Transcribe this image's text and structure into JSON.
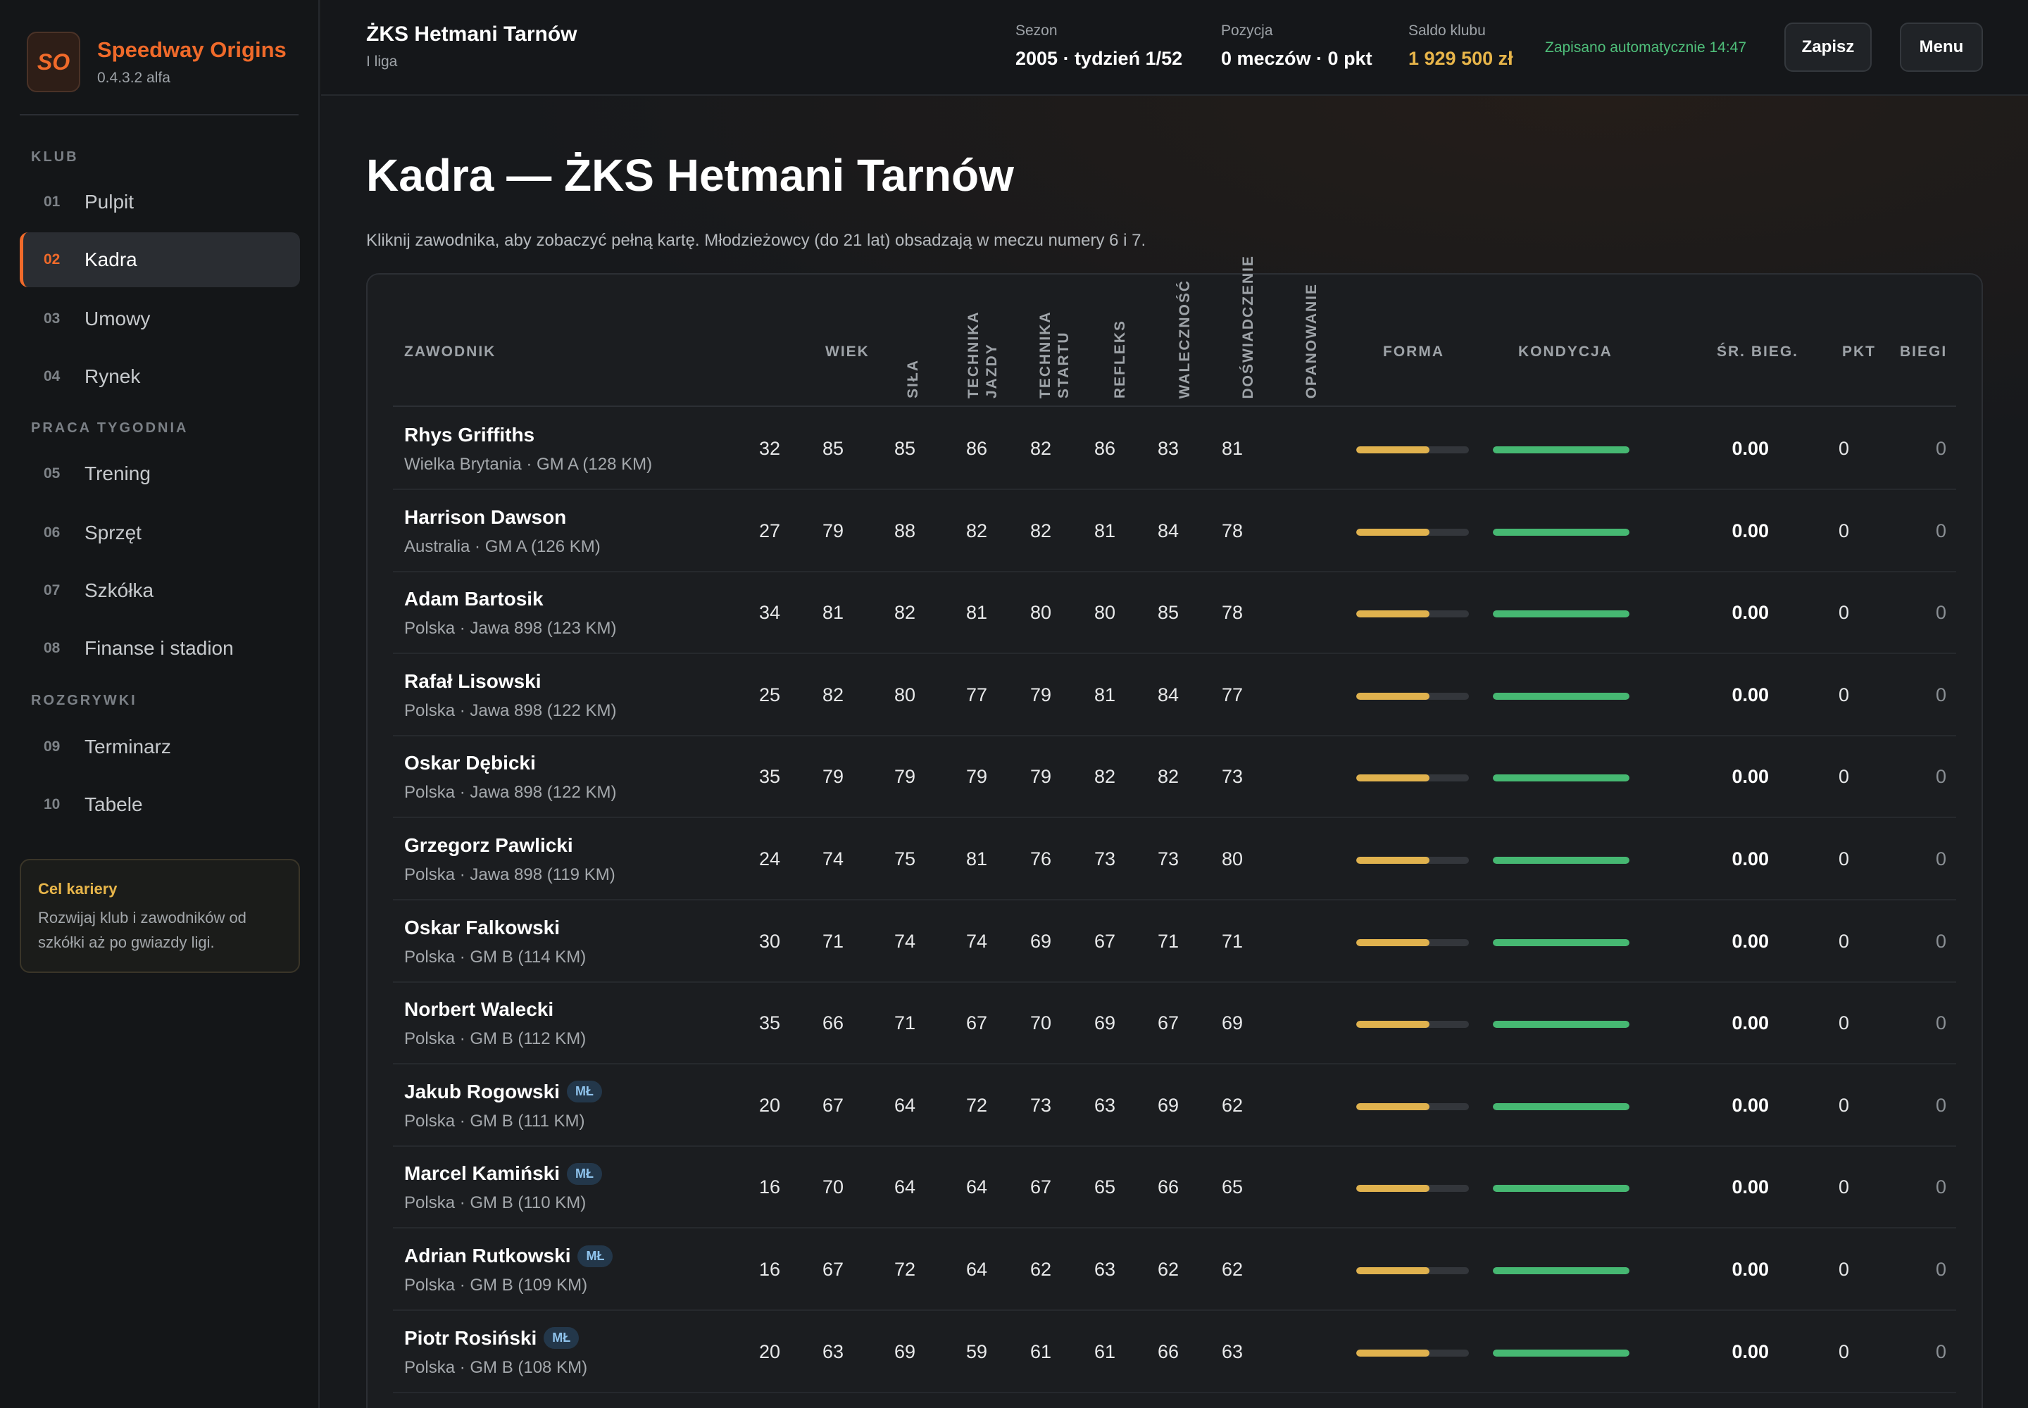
{
  "brand": {
    "logo": "SO",
    "name": "Speedway Origins",
    "version": "0.4.3.2 alfa"
  },
  "nav": {
    "section_club": "KLUB",
    "section_week": "PRACA TYGODNIA",
    "section_games": "ROZGRYWKI",
    "items": [
      {
        "num": "01",
        "label": "Pulpit",
        "active": false
      },
      {
        "num": "02",
        "label": "Kadra",
        "active": true
      },
      {
        "num": "03",
        "label": "Umowy",
        "active": false
      },
      {
        "num": "04",
        "label": "Rynek",
        "active": false
      },
      {
        "num": "05",
        "label": "Trening",
        "active": false
      },
      {
        "num": "06",
        "label": "Sprzęt",
        "active": false
      },
      {
        "num": "07",
        "label": "Szkółka",
        "active": false
      },
      {
        "num": "08",
        "label": "Finanse i stadion",
        "active": false
      },
      {
        "num": "09",
        "label": "Terminarz",
        "active": false
      },
      {
        "num": "10",
        "label": "Tabele",
        "active": false
      }
    ]
  },
  "career": {
    "title": "Cel kariery",
    "text": "Rozwijaj klub i zawodników od szkółki aż po gwiazdy ligi."
  },
  "topbar": {
    "club": "ŻKS Hetmani Tarnów",
    "league": "I liga",
    "season_label": "Sezon",
    "season_value": "2005 · tydzień 1/52",
    "position_label": "Pozycja",
    "position_value": "0 meczów · 0 pkt",
    "balance_label": "Saldo klubu",
    "balance_value": "1 929 500 zł",
    "autosave": "Zapisano automatycznie 14:47",
    "save_label": "Zapisz",
    "menu_label": "Menu"
  },
  "page": {
    "title": "Kadra — ŻKS Hetmani Tarnów",
    "subtitle": "Kliknij zawodnika, aby zobaczyć pełną kartę. Młodzieżowcy (do 21 lat) obsadzają w meczu numery 6 i 7."
  },
  "table": {
    "headers": {
      "player": "ZAWODNIK",
      "age": "WIEK",
      "strength": "SIŁA",
      "riding": "TECHNIKA JAZDY",
      "start": "TECHNIKA STARTU",
      "reflex": "REFLEKS",
      "fight": "WALECZNOŚĆ",
      "experience": "DOŚWIADCZENIE",
      "composure": "OPANOWANIE",
      "form": "FORMA",
      "condition": "KONDYCJA",
      "avg": "ŚR. BIEG.",
      "pts": "PKT",
      "heats": "BIEGI"
    },
    "badge_label": "MŁ",
    "rows": [
      {
        "name": "Rhys Griffiths",
        "junior": false,
        "meta": "Wielka Brytania · GM A (128 KM)",
        "age": "32",
        "strength": "85",
        "riding": "85",
        "start": "86",
        "reflex": "82",
        "fight": "86",
        "experience": "83",
        "composure": "81",
        "form": 0.65,
        "condition": 1.0,
        "avg": "0.00",
        "pts": "0",
        "heats": "0"
      },
      {
        "name": "Harrison Dawson",
        "junior": false,
        "meta": "Australia · GM A (126 KM)",
        "age": "27",
        "strength": "79",
        "riding": "88",
        "start": "82",
        "reflex": "82",
        "fight": "81",
        "experience": "84",
        "composure": "78",
        "form": 0.65,
        "condition": 1.0,
        "avg": "0.00",
        "pts": "0",
        "heats": "0"
      },
      {
        "name": "Adam Bartosik",
        "junior": false,
        "meta": "Polska · Jawa 898 (123 KM)",
        "age": "34",
        "strength": "81",
        "riding": "82",
        "start": "81",
        "reflex": "80",
        "fight": "80",
        "experience": "85",
        "composure": "78",
        "form": 0.65,
        "condition": 1.0,
        "avg": "0.00",
        "pts": "0",
        "heats": "0"
      },
      {
        "name": "Rafał Lisowski",
        "junior": false,
        "meta": "Polska · Jawa 898 (122 KM)",
        "age": "25",
        "strength": "82",
        "riding": "80",
        "start": "77",
        "reflex": "79",
        "fight": "81",
        "experience": "84",
        "composure": "77",
        "form": 0.65,
        "condition": 1.0,
        "avg": "0.00",
        "pts": "0",
        "heats": "0"
      },
      {
        "name": "Oskar Dębicki",
        "junior": false,
        "meta": "Polska · Jawa 898 (122 KM)",
        "age": "35",
        "strength": "79",
        "riding": "79",
        "start": "79",
        "reflex": "79",
        "fight": "82",
        "experience": "82",
        "composure": "73",
        "form": 0.65,
        "condition": 1.0,
        "avg": "0.00",
        "pts": "0",
        "heats": "0"
      },
      {
        "name": "Grzegorz Pawlicki",
        "junior": false,
        "meta": "Polska · Jawa 898 (119 KM)",
        "age": "24",
        "strength": "74",
        "riding": "75",
        "start": "81",
        "reflex": "76",
        "fight": "73",
        "experience": "73",
        "composure": "80",
        "form": 0.65,
        "condition": 1.0,
        "avg": "0.00",
        "pts": "0",
        "heats": "0"
      },
      {
        "name": "Oskar Falkowski",
        "junior": false,
        "meta": "Polska · GM B (114 KM)",
        "age": "30",
        "strength": "71",
        "riding": "74",
        "start": "74",
        "reflex": "69",
        "fight": "67",
        "experience": "71",
        "composure": "71",
        "form": 0.65,
        "condition": 1.0,
        "avg": "0.00",
        "pts": "0",
        "heats": "0"
      },
      {
        "name": "Norbert Walecki",
        "junior": false,
        "meta": "Polska · GM B (112 KM)",
        "age": "35",
        "strength": "66",
        "riding": "71",
        "start": "67",
        "reflex": "70",
        "fight": "69",
        "experience": "67",
        "composure": "69",
        "form": 0.65,
        "condition": 1.0,
        "avg": "0.00",
        "pts": "0",
        "heats": "0"
      },
      {
        "name": "Jakub Rogowski",
        "junior": true,
        "meta": "Polska · GM B (111 KM)",
        "age": "20",
        "strength": "67",
        "riding": "64",
        "start": "72",
        "reflex": "73",
        "fight": "63",
        "experience": "69",
        "composure": "62",
        "form": 0.65,
        "condition": 1.0,
        "avg": "0.00",
        "pts": "0",
        "heats": "0"
      },
      {
        "name": "Marcel Kamiński",
        "junior": true,
        "meta": "Polska · GM B (110 KM)",
        "age": "16",
        "strength": "70",
        "riding": "64",
        "start": "64",
        "reflex": "67",
        "fight": "65",
        "experience": "66",
        "composure": "65",
        "form": 0.65,
        "condition": 1.0,
        "avg": "0.00",
        "pts": "0",
        "heats": "0"
      },
      {
        "name": "Adrian Rutkowski",
        "junior": true,
        "meta": "Polska · GM B (109 KM)",
        "age": "16",
        "strength": "67",
        "riding": "72",
        "start": "64",
        "reflex": "62",
        "fight": "63",
        "experience": "62",
        "composure": "62",
        "form": 0.65,
        "condition": 1.0,
        "avg": "0.00",
        "pts": "0",
        "heats": "0"
      },
      {
        "name": "Piotr Rosiński",
        "junior": true,
        "meta": "Polska · GM B (108 KM)",
        "age": "20",
        "strength": "63",
        "riding": "69",
        "start": "59",
        "reflex": "61",
        "fight": "61",
        "experience": "66",
        "composure": "63",
        "form": 0.65,
        "condition": 1.0,
        "avg": "0.00",
        "pts": "0",
        "heats": "0"
      }
    ]
  },
  "colors": {
    "accent": "#f06a2a",
    "money": "#e7b54a",
    "autosave": "#4fbf7a",
    "form_bar": "#e0b24e",
    "condition_bar": "#46b872"
  }
}
